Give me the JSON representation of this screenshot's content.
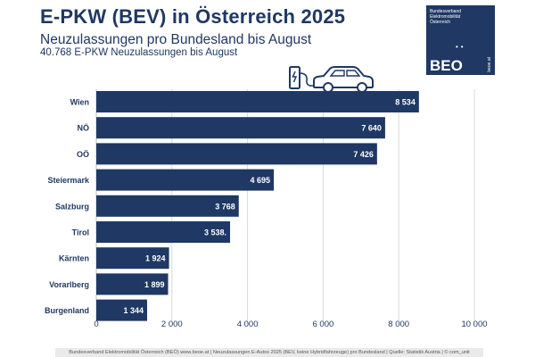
{
  "header": {
    "title": "E-PKW (BEV) in Österreich 2025",
    "subtitle": "Neuzulassungen pro Bundesland bis August",
    "note": "40.768 E-PKW Neuzulassungen bis August"
  },
  "logo": {
    "lines": [
      "Bundesverband",
      "Elektromobilität",
      "Österreich"
    ],
    "abbr": "BEO",
    "url": "beoe.at"
  },
  "footer": {
    "text": "Bundesverband Elektromobilität Österreich (BEÖ) www.beoe.at | Neuzulassungen E-Autos 2025 (BEV, keine Hybridfahrzeuge) pro Bundesland | Quelle: Statistik Austria | © com_unit"
  },
  "colors": {
    "bar": "#1f3864",
    "text": "#1f3864",
    "grid": "#d9d9d9"
  },
  "chart_data": {
    "type": "bar",
    "orientation": "horizontal",
    "categories": [
      "Wien",
      "NÖ",
      "OÖ",
      "Steiermark",
      "Salzburg",
      "Tirol",
      "Kärnten",
      "Vorarlberg",
      "Burgenland"
    ],
    "values": [
      8534,
      7640,
      7426,
      4695,
      3768,
      3538,
      1924,
      1899,
      1344
    ],
    "value_labels": [
      "8 534",
      "7 640",
      "7 426",
      "4 695",
      "3 768",
      "3 538.",
      "1 924",
      "1 899",
      "1 344"
    ],
    "xlim": [
      0,
      10000
    ],
    "xticks": [
      0,
      2000,
      4000,
      6000,
      8000,
      10000
    ],
    "xtick_labels": [
      "0",
      "2 000",
      "4 000",
      "6 000",
      "8 000",
      "10 000"
    ],
    "grid": true,
    "icon": "ev-charging-car-icon"
  }
}
